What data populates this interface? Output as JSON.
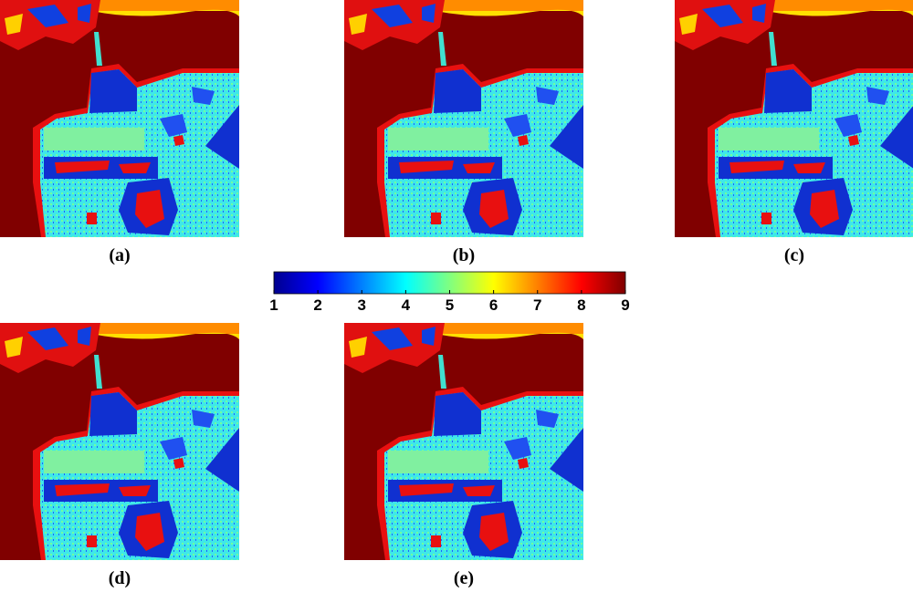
{
  "panels": [
    {
      "label": "(a)"
    },
    {
      "label": "(b)"
    },
    {
      "label": "(c)"
    },
    {
      "label": "(d)"
    },
    {
      "label": "(e)"
    }
  ],
  "colorbar": {
    "lim": [
      1,
      9
    ],
    "ticks": [
      1,
      2,
      3,
      4,
      5,
      6,
      7,
      8,
      9
    ]
  }
}
